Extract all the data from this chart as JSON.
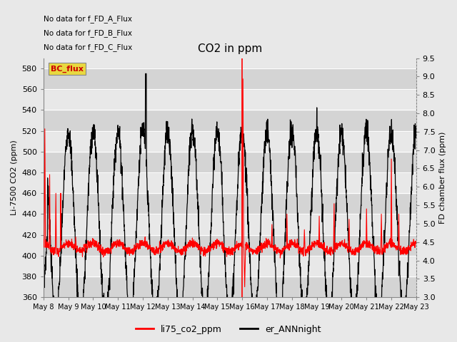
{
  "title": "CO2 in ppm",
  "ylabel_left": "Li-7500 CO2 (ppm)",
  "ylabel_right": "FD chamber flux (ppm)",
  "ylim_left": [
    360,
    590
  ],
  "ylim_right": [
    3.0,
    9.5
  ],
  "yticks_left": [
    360,
    380,
    400,
    420,
    440,
    460,
    480,
    500,
    520,
    540,
    560,
    580
  ],
  "yticks_right": [
    3.0,
    3.5,
    4.0,
    4.5,
    5.0,
    5.5,
    6.0,
    6.5,
    7.0,
    7.5,
    8.0,
    8.5,
    9.0,
    9.5
  ],
  "legend_labels": [
    "li75_co2_ppm",
    "er_ANNnight"
  ],
  "annotations": [
    "No data for f_FD_A_Flux",
    "No data for f_FD_B_Flux",
    "No data for f_FD_C_Flux"
  ],
  "bc_flux_label": "BC_flux",
  "bc_flux_color": "#cc0000",
  "bc_flux_bg": "#e8d840",
  "xticklabels": [
    "May 8",
    "May 9",
    "May 10",
    "May 11",
    "May 12",
    "May 13",
    "May 14",
    "May 15",
    "May 16",
    "May 17",
    "May 18",
    "May 19",
    "May 20",
    "May 21",
    "May 22",
    "May 23"
  ],
  "bg_color": "#e8e8e8",
  "band_dark": "#d4d4d4",
  "band_light": "#e8e8e8",
  "grid_line_color": "#ffffff",
  "n_days": 15,
  "n_pts_per_day": 144,
  "vline_day": 8.0
}
